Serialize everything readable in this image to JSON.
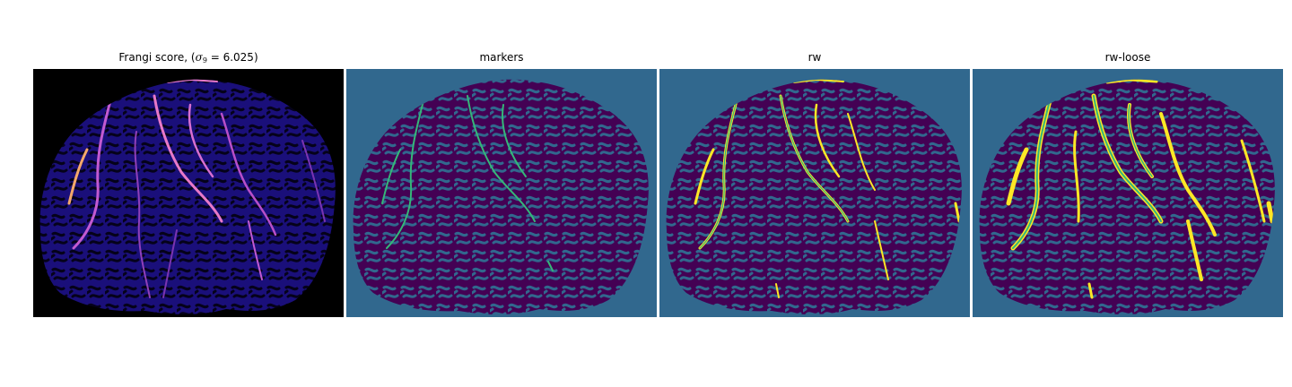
{
  "panels": [
    {
      "id": "frangi",
      "title_prefix": "Frangi score, (",
      "title_symbol": "σ",
      "title_subscript": "9",
      "title_suffix": " = 6.025)"
    },
    {
      "id": "markers",
      "title": "markers"
    },
    {
      "id": "rw",
      "title": "rw"
    },
    {
      "id": "rw-loose",
      "title": "rw-loose"
    }
  ],
  "colors": {
    "frangi_background": "#000000",
    "frangi_tissue": "#1a0f7a",
    "frangi_ridge": "#e879c8",
    "frangi_peak": "#f4a86a",
    "viridis_background": "#31688e",
    "viridis_tissue": "#440154",
    "viridis_vessel": "#35b779",
    "viridis_highlight": "#fde725"
  },
  "colormaps": [
    "plasma",
    "viridis",
    "viridis",
    "viridis"
  ]
}
